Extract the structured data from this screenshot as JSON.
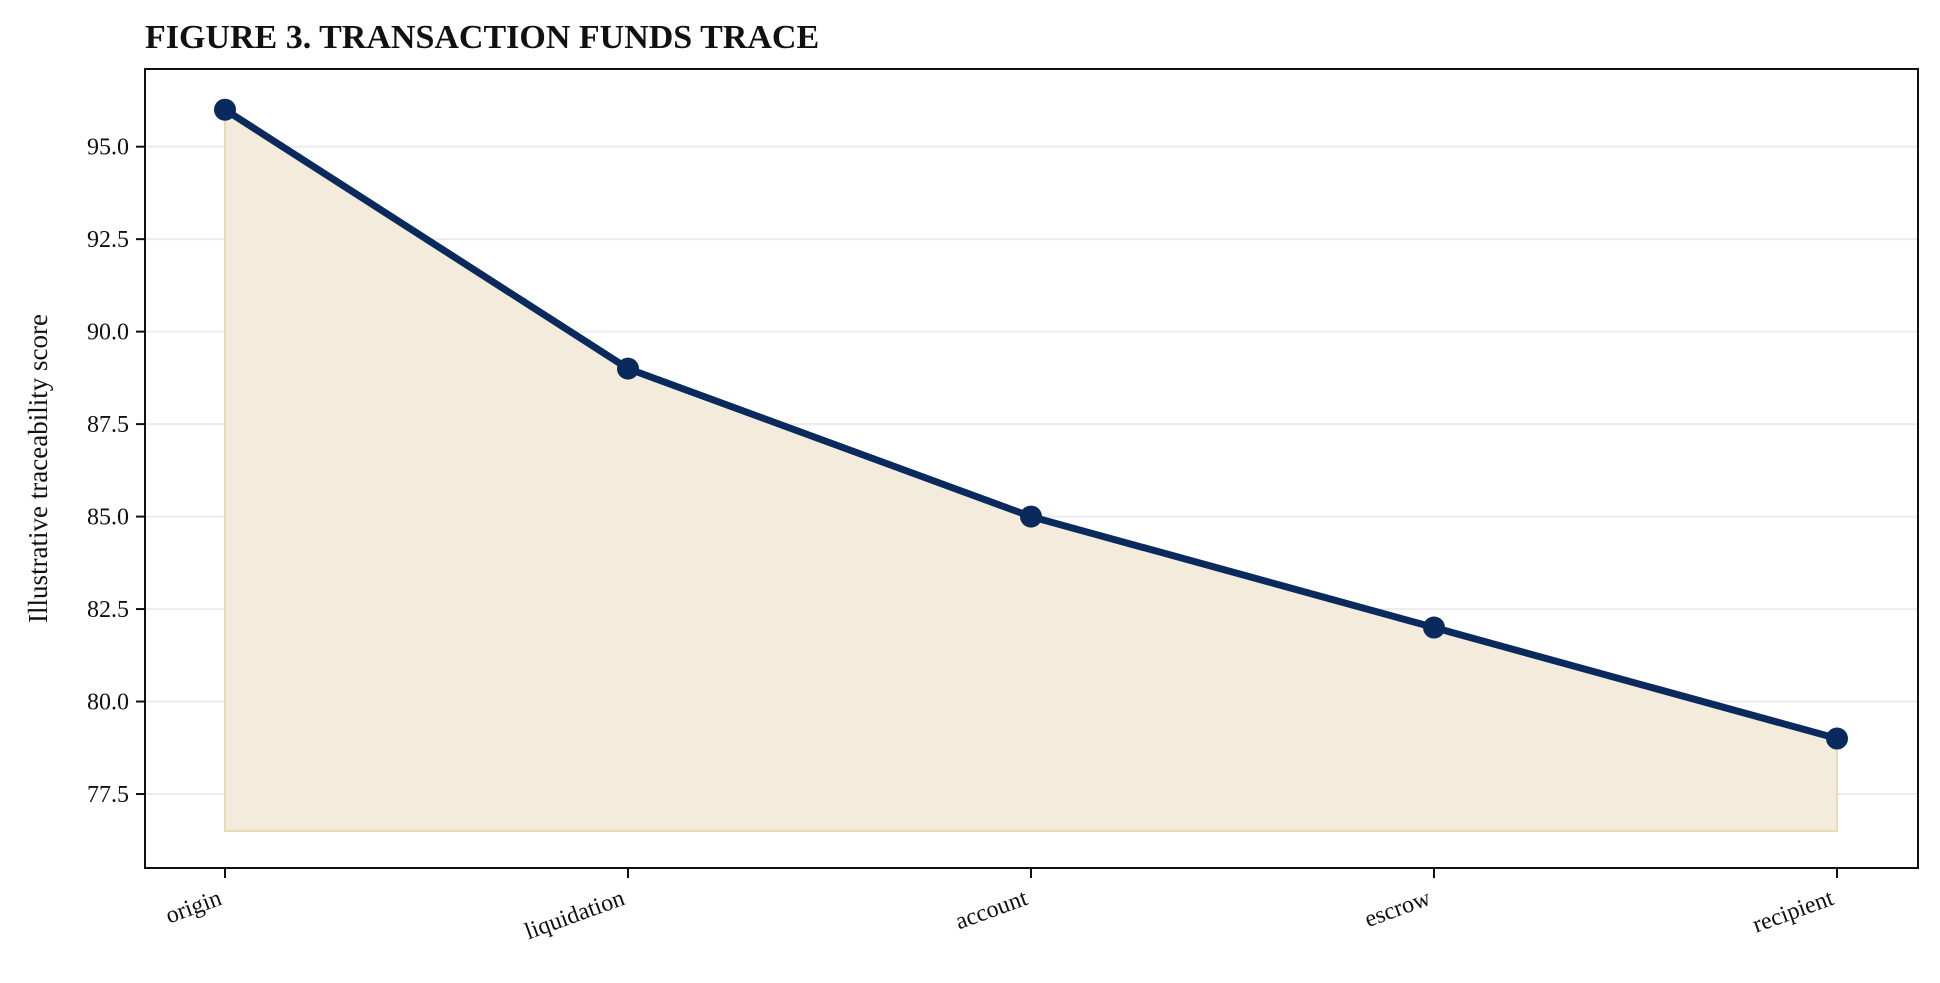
{
  "chart_data": {
    "type": "area",
    "title": "FIGURE 3. TRANSACTION FUNDS TRACE",
    "xlabel": "",
    "ylabel": "Illustrative traceability score",
    "categories": [
      "origin",
      "liquidation",
      "account",
      "escrow",
      "recipient"
    ],
    "series": [
      {
        "values": [
          96.0,
          89.0,
          85.0,
          82.0,
          79.0
        ]
      }
    ],
    "fill_baseline": 76.5,
    "ylim": [
      75.5,
      97.1
    ],
    "yticks": [
      77.5,
      80.0,
      82.5,
      85.0,
      87.5,
      90.0,
      92.5,
      95.0
    ],
    "ytick_labels": [
      "77.5",
      "80.0",
      "82.5",
      "85.0",
      "87.5",
      "90.0",
      "92.5",
      "95.0"
    ],
    "grid": "horizontal",
    "legend": "none",
    "colors": {
      "line": "#0a2a5e",
      "fill": "#f3ebdb",
      "fill_edge": "#eadbb4",
      "grid": "#ebebeb",
      "axis": "#111111"
    }
  }
}
